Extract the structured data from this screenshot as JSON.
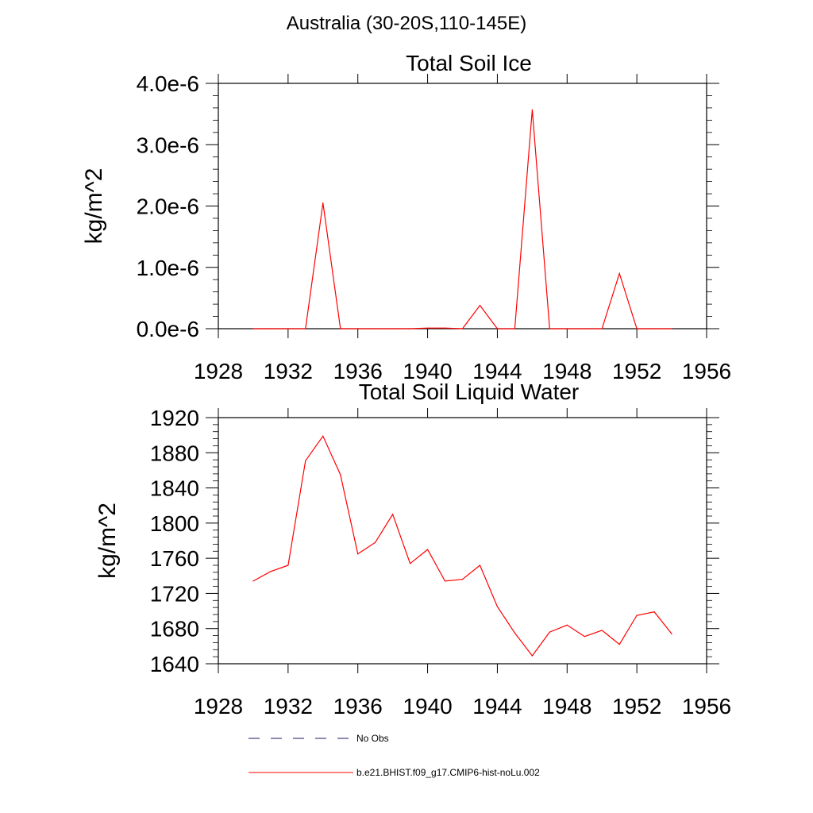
{
  "figure_title": "Australia (30-20S,110-145E)",
  "legend": {
    "obs_label": "No Obs",
    "model_label": "b.e21.BHIST.f09_g17.CMIP6-hist-noLu.002"
  },
  "colors": {
    "model": "#ff0000",
    "obs": "#1a1a66",
    "axes": "#000000"
  },
  "chart_data": [
    {
      "type": "line",
      "title": "Total Soil Ice",
      "xlabel": "",
      "ylabel": "kg/m^2",
      "xlim": [
        1928,
        1956
      ],
      "ylim": [
        0,
        4e-06
      ],
      "x_ticks": [
        1928,
        1932,
        1936,
        1940,
        1944,
        1948,
        1952,
        1956
      ],
      "x_tick_labels": [
        "1928",
        "1932",
        "1936",
        "1940",
        "1944",
        "1948",
        "1952",
        "1956"
      ],
      "y_ticks": [
        0,
        1e-06,
        2e-06,
        3e-06,
        4e-06
      ],
      "y_tick_labels": [
        "0.0e-6",
        "1.0e-6",
        "2.0e-6",
        "3.0e-6",
        "4.0e-6"
      ],
      "grid": false,
      "series": [
        {
          "name": "b.e21.BHIST.f09_g17.CMIP6-hist-noLu.002",
          "x": [
            1930,
            1931,
            1932,
            1933,
            1934,
            1935,
            1936,
            1937,
            1938,
            1939,
            1940,
            1941,
            1942,
            1943,
            1944,
            1945,
            1946,
            1947,
            1948,
            1949,
            1950,
            1951,
            1952,
            1953,
            1954
          ],
          "values": [
            0,
            0,
            0,
            0,
            2.05e-06,
            0,
            0,
            0,
            0,
            0,
            1e-08,
            1e-08,
            0,
            3.8e-07,
            0,
            0,
            3.57e-06,
            0,
            0,
            0,
            0,
            9e-07,
            0,
            0,
            0
          ]
        }
      ]
    },
    {
      "type": "line",
      "title": "Total Soil Liquid Water",
      "xlabel": "",
      "ylabel": "kg/m^2",
      "xlim": [
        1928,
        1956
      ],
      "ylim": [
        1640,
        1920
      ],
      "x_ticks": [
        1928,
        1932,
        1936,
        1940,
        1944,
        1948,
        1952,
        1956
      ],
      "x_tick_labels": [
        "1928",
        "1932",
        "1936",
        "1940",
        "1944",
        "1948",
        "1952",
        "1956"
      ],
      "y_ticks": [
        1640,
        1680,
        1720,
        1760,
        1800,
        1840,
        1880,
        1920
      ],
      "y_tick_labels": [
        "1640",
        "1680",
        "1720",
        "1760",
        "1800",
        "1840",
        "1880",
        "1920"
      ],
      "grid": false,
      "series": [
        {
          "name": "b.e21.BHIST.f09_g17.CMIP6-hist-noLu.002",
          "x": [
            1930,
            1931,
            1932,
            1933,
            1934,
            1935,
            1936,
            1937,
            1938,
            1939,
            1940,
            1941,
            1942,
            1943,
            1944,
            1945,
            1946,
            1947,
            1948,
            1949,
            1950,
            1951,
            1952,
            1953,
            1954
          ],
          "values": [
            1734,
            1745,
            1752,
            1871,
            1899,
            1855,
            1765,
            1778,
            1810,
            1754,
            1770,
            1734,
            1736,
            1752,
            1705,
            1675,
            1649,
            1676,
            1684,
            1671,
            1678,
            1662,
            1695,
            1699,
            1674
          ]
        }
      ]
    }
  ]
}
